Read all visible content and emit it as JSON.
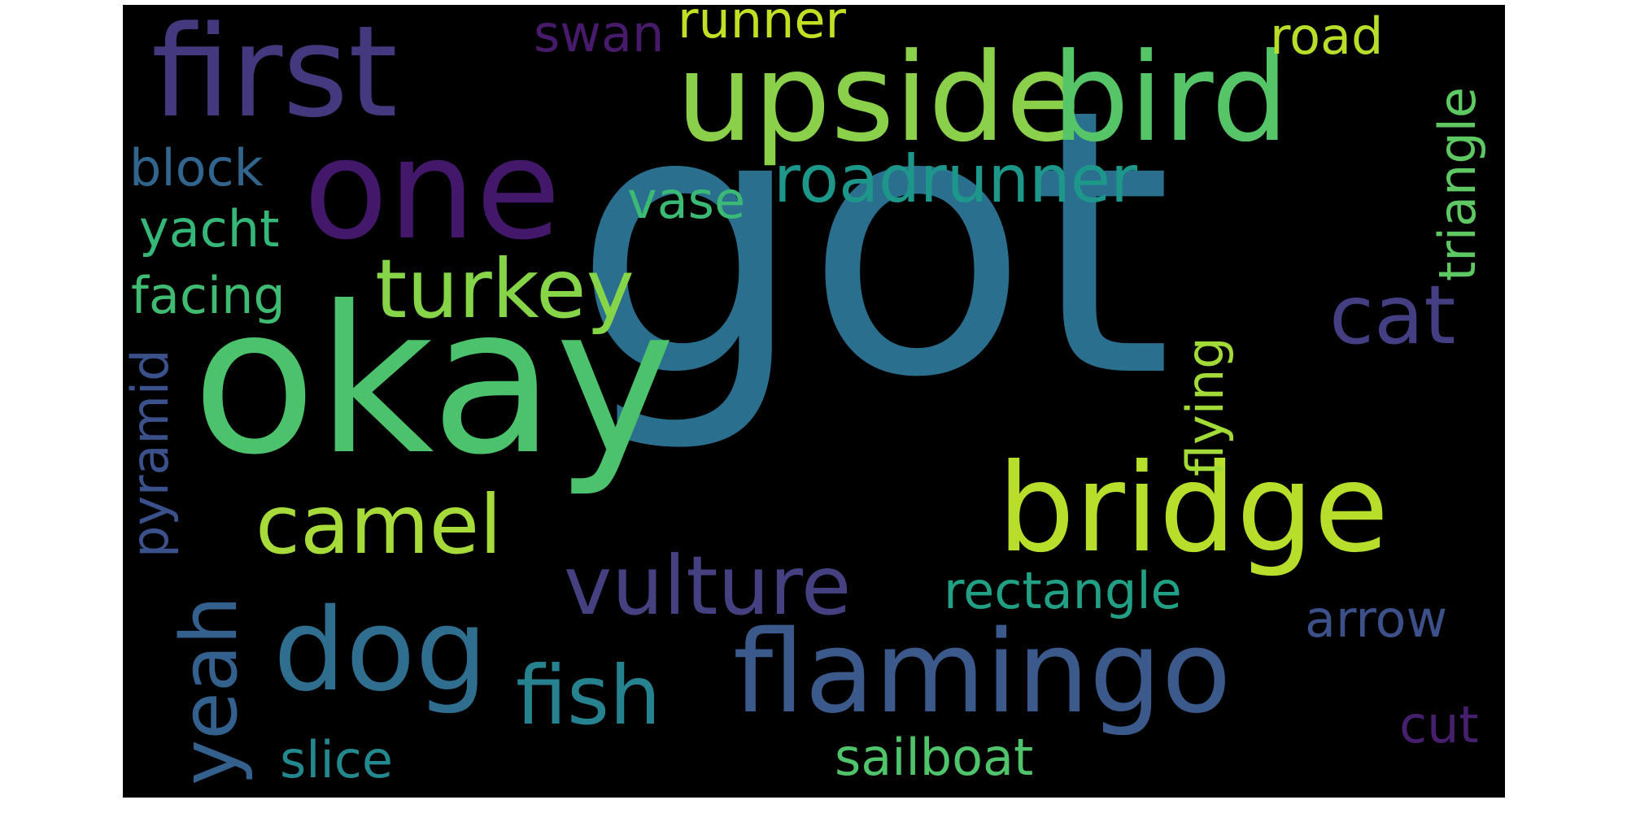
{
  "cloud": {
    "background": "#000000",
    "words": [
      {
        "text": "got",
        "color": "#2b6f8f",
        "orientation": "horizontal"
      },
      {
        "text": "okay",
        "color": "#4cc26c",
        "orientation": "horizontal"
      },
      {
        "text": "one",
        "color": "#43186b",
        "orientation": "horizontal"
      },
      {
        "text": "first",
        "color": "#44397e",
        "orientation": "horizontal"
      },
      {
        "text": "upside",
        "color": "#8ad04a",
        "orientation": "horizontal"
      },
      {
        "text": "bird",
        "color": "#55c567",
        "orientation": "horizontal"
      },
      {
        "text": "bridge",
        "color": "#b6de2b",
        "orientation": "horizontal"
      },
      {
        "text": "flamingo",
        "color": "#3b5a8b",
        "orientation": "horizontal"
      },
      {
        "text": "dog",
        "color": "#2f6e8e",
        "orientation": "horizontal"
      },
      {
        "text": "turkey",
        "color": "#86d549",
        "orientation": "horizontal"
      },
      {
        "text": "cat",
        "color": "#433f82",
        "orientation": "horizontal"
      },
      {
        "text": "camel",
        "color": "#a6db3a",
        "orientation": "horizontal"
      },
      {
        "text": "vulture",
        "color": "#45407f",
        "orientation": "horizontal"
      },
      {
        "text": "fish",
        "color": "#27828f",
        "orientation": "horizontal"
      },
      {
        "text": "yeah",
        "color": "#34608d",
        "orientation": "vertical"
      },
      {
        "text": "roadrunner",
        "color": "#1e978b",
        "orientation": "horizontal"
      },
      {
        "text": "rectangle",
        "color": "#21a085",
        "orientation": "horizontal"
      },
      {
        "text": "arrow",
        "color": "#3c5089",
        "orientation": "horizontal"
      },
      {
        "text": "sailboat",
        "color": "#50c46a",
        "orientation": "horizontal"
      },
      {
        "text": "slice",
        "color": "#23898e",
        "orientation": "horizontal"
      },
      {
        "text": "cut",
        "color": "#471f6f",
        "orientation": "horizontal"
      },
      {
        "text": "vase",
        "color": "#3bba75",
        "orientation": "horizontal"
      },
      {
        "text": "block",
        "color": "#32658e",
        "orientation": "horizontal"
      },
      {
        "text": "yacht",
        "color": "#35b779",
        "orientation": "horizontal"
      },
      {
        "text": "facing",
        "color": "#3fbb72",
        "orientation": "horizontal"
      },
      {
        "text": "pyramid",
        "color": "#3b518b",
        "orientation": "vertical"
      },
      {
        "text": "flying",
        "color": "#a2da37",
        "orientation": "vertical"
      },
      {
        "text": "triangle",
        "color": "#5ec962",
        "orientation": "vertical"
      },
      {
        "text": "road",
        "color": "#b8de29",
        "orientation": "horizontal"
      },
      {
        "text": "swan",
        "color": "#481a6c",
        "orientation": "horizontal"
      },
      {
        "text": "runner",
        "color": "#c2df23",
        "orientation": "horizontal"
      }
    ]
  }
}
